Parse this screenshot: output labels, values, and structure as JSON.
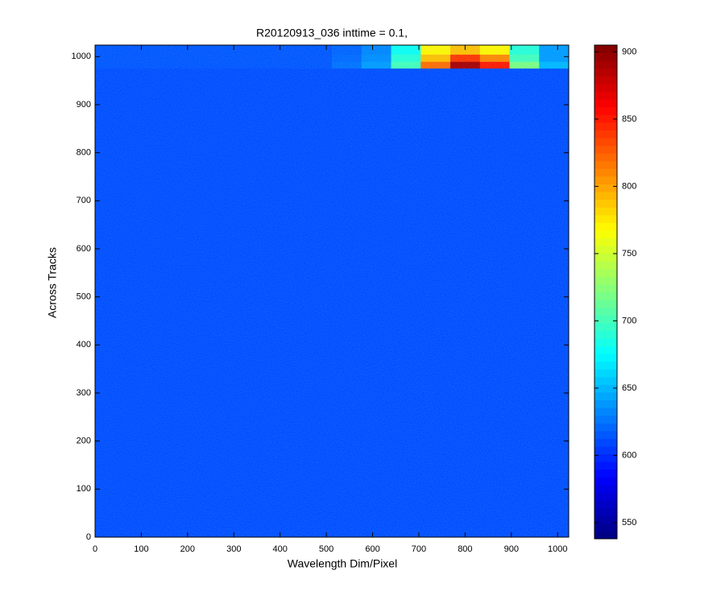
{
  "chart_data": {
    "type": "heatmap",
    "title": "R20120913_036 inttime = 0.1,",
    "xlabel": "Wavelength Dim/Pixel",
    "ylabel": "Across Tracks",
    "xlim": [
      0,
      1024
    ],
    "ylim": [
      0,
      1024
    ],
    "xticks": [
      0,
      100,
      200,
      300,
      400,
      500,
      600,
      700,
      800,
      900,
      1000
    ],
    "yticks": [
      0,
      100,
      200,
      300,
      400,
      500,
      600,
      700,
      800,
      900,
      1000
    ],
    "xbins": [
      0,
      64,
      128,
      192,
      256,
      320,
      384,
      448,
      512,
      576,
      640,
      704,
      768,
      832,
      896,
      960,
      1024
    ],
    "ybins": [
      0,
      976,
      990,
      1005,
      1024
    ],
    "values": [
      [
        612,
        612,
        612,
        612,
        612,
        612,
        612,
        612,
        612,
        612,
        612,
        612,
        612,
        612,
        612,
        612
      ],
      [
        615,
        615,
        615,
        615,
        615,
        615,
        615,
        615,
        625,
        640,
        700,
        820,
        890,
        850,
        720,
        650
      ],
      [
        615,
        615,
        615,
        615,
        615,
        615,
        615,
        615,
        622,
        635,
        690,
        790,
        840,
        810,
        700,
        640
      ],
      [
        615,
        615,
        615,
        615,
        615,
        615,
        615,
        615,
        620,
        632,
        680,
        770,
        790,
        770,
        690,
        640
      ]
    ],
    "colormap": "jet",
    "clim": [
      538,
      905
    ],
    "cticks": [
      550,
      600,
      650,
      700,
      750,
      800,
      850,
      900
    ]
  }
}
